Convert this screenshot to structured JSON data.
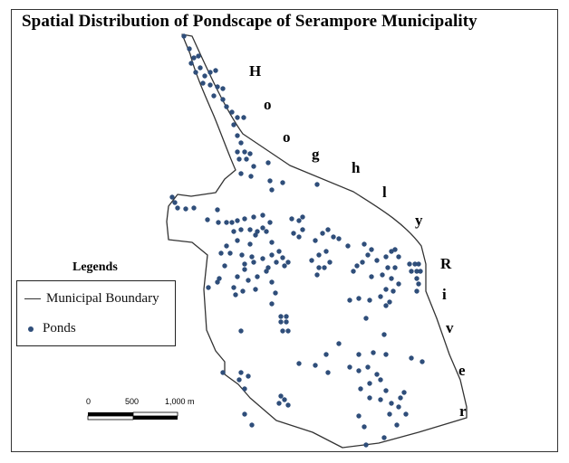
{
  "title": "Spatial Distribution of Pondscape of Serampore Municipality",
  "river_label": [
    "H",
    "o",
    "o",
    "g",
    "h",
    "l",
    "y",
    "R",
    "i",
    "v",
    "e",
    "r"
  ],
  "legend": {
    "title": "Legends",
    "items": [
      {
        "label": "Municipal Boundary",
        "symbol": "line"
      },
      {
        "label": "Ponds",
        "symbol": "dot"
      }
    ]
  },
  "scale_bar": {
    "labels": [
      "0",
      "500",
      "1,000 m"
    ]
  },
  "colors": {
    "pond": "#2f4e7a",
    "boundary": "#333333",
    "frame": "#333333"
  }
}
